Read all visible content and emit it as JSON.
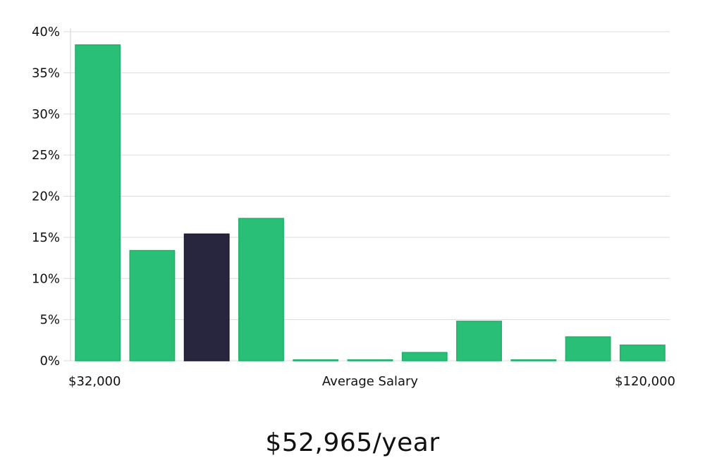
{
  "chart_data": {
    "type": "bar",
    "values": [
      38.4,
      13.4,
      15.4,
      17.3,
      0.1,
      0.1,
      1.0,
      4.8,
      0.1,
      2.9,
      1.9
    ],
    "highlight_index": 2,
    "ylim": [
      0,
      40
    ],
    "y_ticks": [
      0,
      5,
      10,
      15,
      20,
      25,
      30,
      35,
      40
    ],
    "y_tick_suffix": "%",
    "x_min_label": "$32,000",
    "x_center_label": "Average Salary",
    "x_max_label": "$120,000",
    "grid": true,
    "colors": {
      "bar": "#2abf76",
      "highlight": "#28253f"
    }
  },
  "headline": "$52,965/year"
}
